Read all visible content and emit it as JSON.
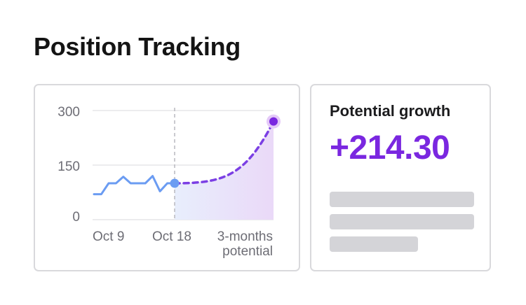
{
  "header": {
    "title": "Position Tracking"
  },
  "chart_data": {
    "type": "line",
    "yticks": [
      "300",
      "150",
      "0"
    ],
    "xticks": [
      "Oct 9",
      "Oct 18",
      "3-months",
      "potential"
    ],
    "ylim": [
      0,
      300
    ],
    "series": [
      {
        "values": [
          70,
          70,
          100,
          100,
          118,
          100,
          100,
          100,
          120,
          78,
          100,
          100
        ]
      },
      {
        "values": [
          100,
          140,
          190,
          270
        ]
      }
    ],
    "colors": {
      "history": "#6b9cf2",
      "projection": "#7b3fe4",
      "fill": "#ede2fb"
    }
  },
  "growth": {
    "label": "Potential growth",
    "value": "+214.30"
  }
}
